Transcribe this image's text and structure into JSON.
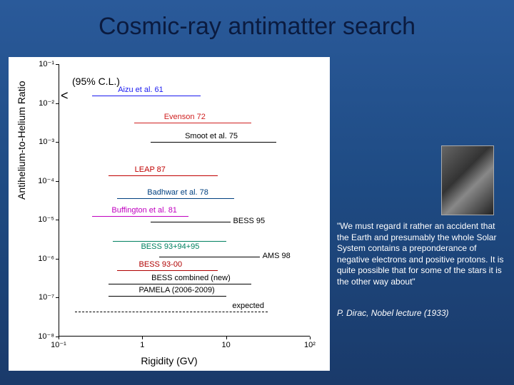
{
  "title": "Cosmic-ray antimatter search",
  "chart": {
    "ylabel": "Antihelium-to-Helium Ratio",
    "xlabel": "Rigidity (GV)",
    "cl_label": "(95% C.L.)",
    "background_color": "#ffffff",
    "ylim": [
      -8,
      -1
    ],
    "xlim": [
      -1,
      2
    ],
    "yticks": [
      "10⁻¹",
      "10⁻²",
      "10⁻³",
      "10⁻⁴",
      "10⁻⁵",
      "10⁻⁶",
      "10⁻⁷",
      "10⁻⁸"
    ],
    "xticks": [
      "10⁻¹",
      "1",
      "10",
      "10²"
    ],
    "limits": [
      {
        "label": "Aizu et al. 61",
        "y_exp": -1.8,
        "x_from": -0.6,
        "x_to": 0.7,
        "color": "#1a1af0",
        "pos": "above"
      },
      {
        "label": "Evenson 72",
        "y_exp": -2.5,
        "x_from": -0.1,
        "x_to": 1.3,
        "color": "#d02020",
        "pos": "above"
      },
      {
        "label": "Smoot et al. 75",
        "y_exp": -3.0,
        "x_from": 0.1,
        "x_to": 1.6,
        "color": "#000000",
        "pos": "above"
      },
      {
        "label": "LEAP 87",
        "y_exp": -3.85,
        "x_from": -0.4,
        "x_to": 0.9,
        "color": "#c00000",
        "pos": "above"
      },
      {
        "label": "Badhwar et al. 78",
        "y_exp": -4.45,
        "x_from": -0.3,
        "x_to": 1.1,
        "color": "#004080",
        "pos": "above"
      },
      {
        "label": "Buffington et al. 81",
        "y_exp": -4.9,
        "x_from": -0.6,
        "x_to": 0.55,
        "color": "#c000c0",
        "pos": "above"
      },
      {
        "label": "BESS 95",
        "y_exp": -5.05,
        "x_from": 0.1,
        "x_to": 1.05,
        "color": "#000000",
        "pos": "right"
      },
      {
        "label": "BESS 93+94+95",
        "y_exp": -5.55,
        "x_from": -0.35,
        "x_to": 1.0,
        "color": "#008060",
        "pos": "below"
      },
      {
        "label": "AMS 98",
        "y_exp": -5.95,
        "x_from": 0.2,
        "x_to": 1.4,
        "color": "#000000",
        "pos": "right"
      },
      {
        "label": "BESS 93-00",
        "y_exp": -6.3,
        "x_from": -0.3,
        "x_to": 0.9,
        "color": "#b00000",
        "pos": "above"
      },
      {
        "label": "BESS combined (new)",
        "y_exp": -6.65,
        "x_from": -0.4,
        "x_to": 1.3,
        "color": "#000000",
        "pos": "above",
        "dashed": false
      },
      {
        "label": "PAMELA (2006-2009)",
        "y_exp": -6.95,
        "x_from": -0.4,
        "x_to": 1.0,
        "color": "#000000",
        "pos": "above"
      }
    ],
    "expected": {
      "label": "expected",
      "y_exp": -7.35,
      "x_from": -0.8,
      "x_to": 1.5,
      "color": "#000000"
    }
  },
  "quote": "\"We must regard it rather an accident that the Earth and presumably the whole Solar System contains a preponderance of negative electrons and positive protons. It is quite possible that for some of the stars it is the other way about\"",
  "attribution": "P. Dirac, Nobel lecture (1933)",
  "colors": {
    "bg_top": "#2a5a9a",
    "bg_bot": "#1a3a6a",
    "title": "#0b1b3f",
    "text": "#ffffff"
  }
}
